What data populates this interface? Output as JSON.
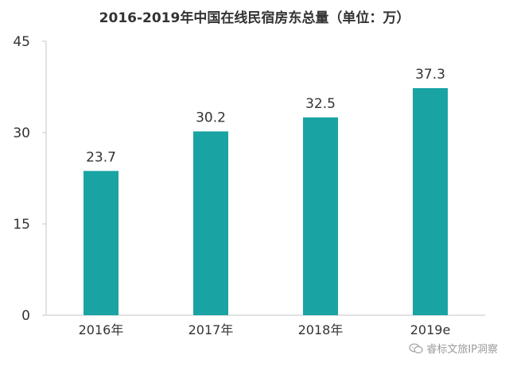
{
  "chart_data": {
    "type": "bar",
    "title": "2016-2019年中国在线民宿房东总量（单位：万）",
    "categories": [
      "2016年",
      "2017年",
      "2018年",
      "2019e"
    ],
    "values": [
      23.7,
      30.2,
      32.5,
      37.3
    ],
    "value_labels": [
      "23.7",
      "30.2",
      "32.5",
      "37.3"
    ],
    "ylim": [
      0,
      45
    ],
    "yticks": [
      0,
      15,
      30,
      45
    ],
    "xlabel": "",
    "ylabel": "",
    "grid": false,
    "legend": "none",
    "bar_color": "#1aa3a3",
    "axis_color": "#d9d9d9",
    "text_color": "#333333"
  },
  "watermark": {
    "icon": "wechat-icon",
    "text": "睿标文旅IP洞察"
  }
}
